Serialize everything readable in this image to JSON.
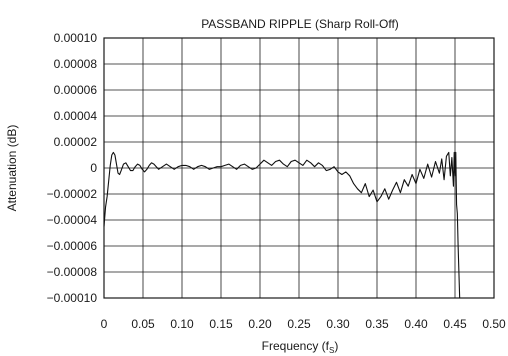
{
  "chart_data": {
    "type": "line",
    "title": "PASSBAND RIPPLE (Sharp Roll-Off)",
    "xlabel": "Frequency (f",
    "xlabel_sub": "S",
    "ylabel": "Attenuation (dB)",
    "xlim": [
      0,
      0.5
    ],
    "ylim": [
      -0.0001,
      0.0001
    ],
    "x_ticks": [
      0,
      0.05,
      0.1,
      0.15,
      0.2,
      0.25,
      0.3,
      0.35,
      0.4,
      0.45,
      0.5
    ],
    "x_tick_labels": [
      "0",
      "0.05",
      "0.10",
      "0.15",
      "0.20",
      "0.25",
      "0.30",
      "0.35",
      "0.40",
      "0.45",
      "0.50"
    ],
    "y_ticks": [
      0.0001,
      8e-05,
      6e-05,
      4e-05,
      2e-05,
      0,
      -2e-05,
      -4e-05,
      -6e-05,
      -8e-05,
      -0.0001
    ],
    "y_tick_labels": [
      "0.00010",
      "0.00008",
      "0.00006",
      "0.00004",
      "0.00002",
      "0",
      "−0.00002",
      "−0.00004",
      "−0.00006",
      "−0.00008",
      "−0.00010"
    ],
    "grid": true,
    "legend": "none",
    "line_color": "#111111",
    "series": [
      {
        "x": [
          0,
          0.002,
          0.004,
          0.006,
          0.008,
          0.01,
          0.012,
          0.014,
          0.016,
          0.018,
          0.02,
          0.022,
          0.025,
          0.028,
          0.031,
          0.034,
          0.037,
          0.04,
          0.043,
          0.046,
          0.049,
          0.052,
          0.055,
          0.058,
          0.061,
          0.064,
          0.067,
          0.07,
          0.075,
          0.08,
          0.085,
          0.09,
          0.095,
          0.1,
          0.105,
          0.11,
          0.115,
          0.12,
          0.125,
          0.13,
          0.135,
          0.14,
          0.145,
          0.15,
          0.155,
          0.16,
          0.165,
          0.17,
          0.175,
          0.18,
          0.185,
          0.19,
          0.195,
          0.2,
          0.205,
          0.21,
          0.215,
          0.22,
          0.225,
          0.23,
          0.235,
          0.24,
          0.245,
          0.25,
          0.255,
          0.26,
          0.265,
          0.27,
          0.275,
          0.28,
          0.285,
          0.29,
          0.295,
          0.3,
          0.305,
          0.31,
          0.315,
          0.32,
          0.325,
          0.33,
          0.335,
          0.34,
          0.345,
          0.35,
          0.355,
          0.36,
          0.365,
          0.37,
          0.375,
          0.38,
          0.385,
          0.39,
          0.395,
          0.4,
          0.405,
          0.41,
          0.415,
          0.42,
          0.425,
          0.43,
          0.433,
          0.436,
          0.439,
          0.442,
          0.444,
          0.446,
          0.448,
          0.449,
          0.45,
          0.451,
          0.452,
          0.453,
          0.454,
          0.455,
          0.456
        ],
        "y": [
          -4.5e-05,
          -3e-05,
          -2.2e-05,
          -1e-05,
          2e-06,
          1e-05,
          1.2e-05,
          1e-05,
          3e-06,
          -4e-06,
          -5e-06,
          -2e-06,
          3e-06,
          4e-06,
          1e-06,
          -2e-06,
          -2e-06,
          1e-06,
          3e-06,
          2e-06,
          -1e-06,
          -3e-06,
          -1e-06,
          2e-06,
          4e-06,
          3e-06,
          1e-06,
          -1e-06,
          1e-06,
          3e-06,
          1e-06,
          -1e-06,
          1e-06,
          2e-06,
          2e-06,
          1e-06,
          -1e-06,
          1e-06,
          2e-06,
          1e-06,
          -1e-06,
          0.0,
          1e-06,
          1e-06,
          2e-06,
          3e-06,
          1e-06,
          -1e-06,
          2e-06,
          3e-06,
          1e-06,
          -1e-06,
          0.0,
          3e-06,
          6e-06,
          4e-06,
          2e-06,
          5e-06,
          6e-06,
          3e-06,
          1e-06,
          5e-06,
          6e-06,
          4e-06,
          2e-06,
          6e-06,
          4e-06,
          1e-06,
          4e-06,
          2e-06,
          -2e-06,
          -1e-06,
          1e-06,
          -3e-06,
          -5e-06,
          -3e-06,
          -6e-06,
          -1.2e-05,
          -1.6e-05,
          -1.9e-05,
          -1.2e-05,
          -2.2e-05,
          -1.7e-05,
          -2.6e-05,
          -2.2e-05,
          -1.6e-05,
          -2.4e-05,
          -1.7e-05,
          -1.1e-05,
          -1.9e-05,
          -9e-06,
          -1.4e-05,
          -5e-06,
          -1.2e-05,
          -1e-06,
          -8e-06,
          3e-06,
          -7e-06,
          5e-06,
          -4e-06,
          7e-06,
          -9e-06,
          9e-06,
          1.2e-05,
          -6e-06,
          8e-06,
          -1.4e-05,
          1.2e-05,
          -6e-06,
          1.2e-05,
          -2.8e-05,
          -3.5e-05,
          -6e-05,
          -8e-05,
          -0.0001
        ]
      }
    ]
  }
}
